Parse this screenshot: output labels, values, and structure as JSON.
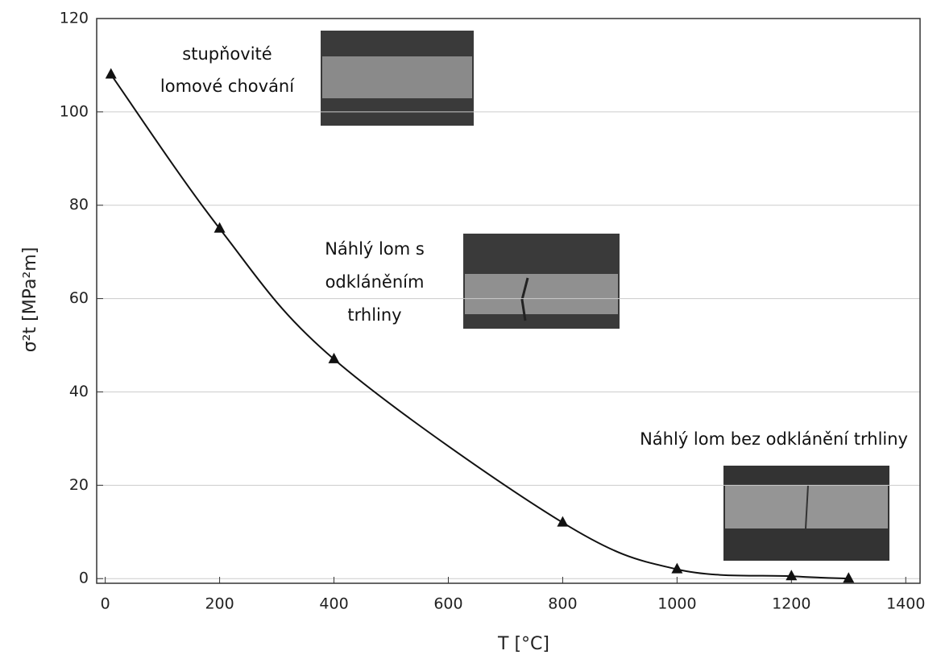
{
  "chart_data": {
    "type": "line",
    "x_label": "T [°C]",
    "y_label": "σ²t  [MPa²m]",
    "x": [
      10,
      200,
      400,
      800,
      1000,
      1200,
      1300
    ],
    "series": [
      {
        "color": "#111111",
        "values": [
          108,
          75,
          47,
          12,
          2,
          0.5,
          0
        ]
      }
    ],
    "xlim": [
      -15,
      1425
    ],
    "ylim": [
      -1,
      120
    ],
    "xticks": [
      0,
      200,
      400,
      600,
      800,
      1000,
      1200,
      1400
    ],
    "yticks": [
      0,
      20,
      40,
      60,
      80,
      100,
      120
    ],
    "grid": true,
    "annotations": [
      "stupňovité",
      "lomové chování",
      "Náhlý lom s",
      "odkláněním",
      "trhliny",
      "Náhlý lom bez odklánění trhliny"
    ]
  }
}
